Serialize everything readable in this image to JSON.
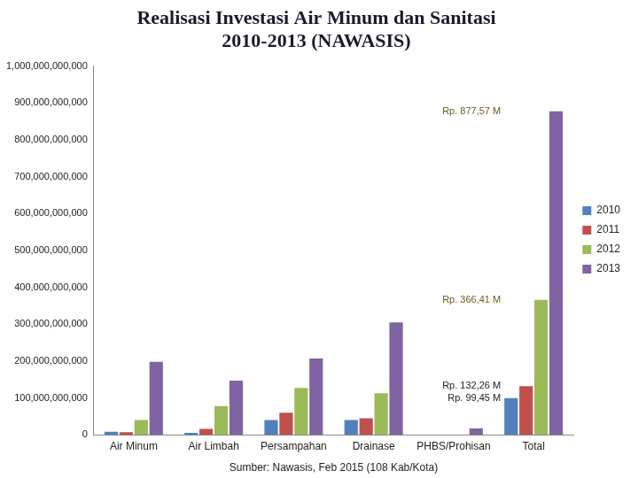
{
  "chart_data": {
    "type": "bar",
    "title": [
      "Realisasi Investasi Air Minum dan Sanitasi",
      "2010-2013 (NAWASIS)"
    ],
    "caption": "Sumber: Nawasis, Feb 2015 (108 Kab/Kota)",
    "categories": [
      "Air Minum",
      "Air Limbah",
      "Persampahan",
      "Drainase",
      "PHBS/Prohisan",
      "Total"
    ],
    "series": [
      {
        "name": "2010",
        "color": "#4f81bd",
        "values": [
          8000000000,
          5000000000,
          40000000000,
          40000000000,
          0,
          99450000000
        ]
      },
      {
        "name": "2011",
        "color": "#c0504d",
        "values": [
          7000000000,
          16000000000,
          60000000000,
          45000000000,
          0,
          132260000000
        ]
      },
      {
        "name": "2012",
        "color": "#9bbb59",
        "values": [
          40000000000,
          78000000000,
          127000000000,
          113000000000,
          0,
          366410000000
        ]
      },
      {
        "name": "2013",
        "color": "#8064a2",
        "values": [
          198000000000,
          147000000000,
          207000000000,
          305000000000,
          17000000000,
          877570000000
        ]
      }
    ],
    "ylim": [
      0,
      1000000000000
    ],
    "yticks": [
      0,
      {
        "value": 100000000000,
        "label": "100,000,000,000"
      },
      {
        "value": 200000000000,
        "label": "200,000,000,000"
      },
      {
        "value": 300000000000,
        "label": "300,000,000,000"
      },
      {
        "value": 400000000000,
        "label": "400,000,000,000"
      },
      {
        "value": 500000000000,
        "label": "500,000,000,000"
      },
      {
        "value": 600000000000,
        "label": "600,000,000,000"
      },
      {
        "value": 700000000000,
        "label": "700,000,000,000"
      },
      {
        "value": 800000000000,
        "label": "800,000,000,000"
      },
      {
        "value": 900000000000,
        "label": "900,000,000,000"
      },
      {
        "value": 1000000000000,
        "label": "1,000,000,000,000"
      }
    ],
    "grid": false,
    "legend": "right",
    "data_labels": false,
    "annotations": [
      {
        "text": "Rp. 877,57 M",
        "category": "Total",
        "series": "2013"
      },
      {
        "text": "Rp. 366,41 M",
        "category": "Total",
        "series": "2012"
      },
      {
        "text": "Rp. 132,26 M",
        "category": "Total",
        "series": "2011"
      },
      {
        "text": "Rp. 99,45 M",
        "category": "Total",
        "series": "2010"
      }
    ]
  }
}
